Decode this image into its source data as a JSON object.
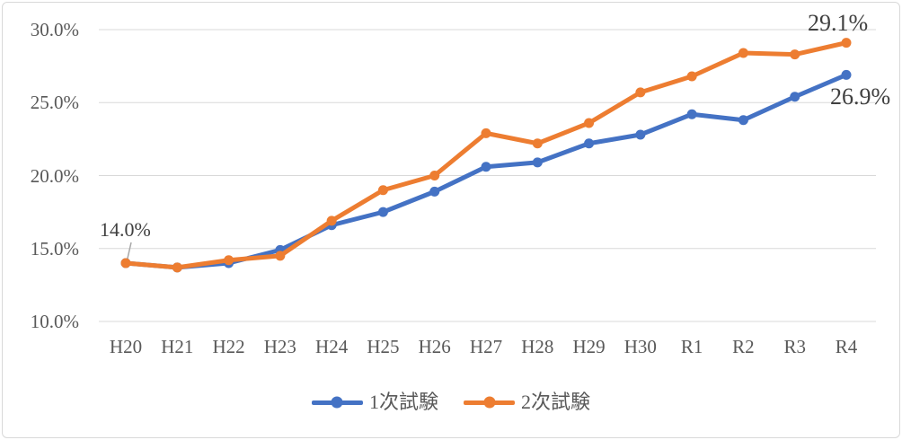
{
  "chart_data": {
    "type": "line",
    "categories": [
      "H20",
      "H21",
      "H22",
      "H23",
      "H24",
      "H25",
      "H26",
      "H27",
      "H28",
      "H29",
      "H30",
      "R1",
      "R2",
      "R3",
      "R4"
    ],
    "series": [
      {
        "name": "1次試験",
        "color": "#4472C4",
        "values": [
          14.0,
          13.7,
          14.0,
          14.9,
          16.6,
          17.5,
          18.9,
          20.6,
          20.9,
          22.2,
          22.8,
          24.2,
          23.8,
          25.4,
          26.9
        ]
      },
      {
        "name": "2次試験",
        "color": "#ED7D31",
        "values": [
          14.0,
          13.7,
          14.2,
          14.5,
          16.9,
          19.0,
          20.0,
          22.9,
          22.2,
          23.6,
          25.7,
          26.8,
          28.4,
          28.3,
          29.1
        ]
      }
    ],
    "title": "",
    "xlabel": "",
    "ylabel": "",
    "ylim": [
      10.0,
      30.0
    ],
    "y_tick_values": [
      10,
      15,
      20,
      25,
      30
    ],
    "y_tick_labels": [
      "10.0%",
      "15.0%",
      "20.0%",
      "25.0%",
      "30.0%"
    ],
    "grid": true,
    "legend_position": "bottom",
    "annotations": [
      {
        "text": "14.0%",
        "target": "H20 series start"
      },
      {
        "text": "29.1%",
        "target": "R4 2次試験"
      },
      {
        "text": "26.9%",
        "target": "R4 1次試験"
      }
    ]
  },
  "colors": {
    "gridline": "#D9D9D9",
    "frame_border": "#D9D9D9",
    "axis_text": "#595959",
    "annotation_text": "#404040",
    "leader_line": "#A6A6A6",
    "series_blue": "#4472C4",
    "series_orange": "#ED7D31"
  }
}
